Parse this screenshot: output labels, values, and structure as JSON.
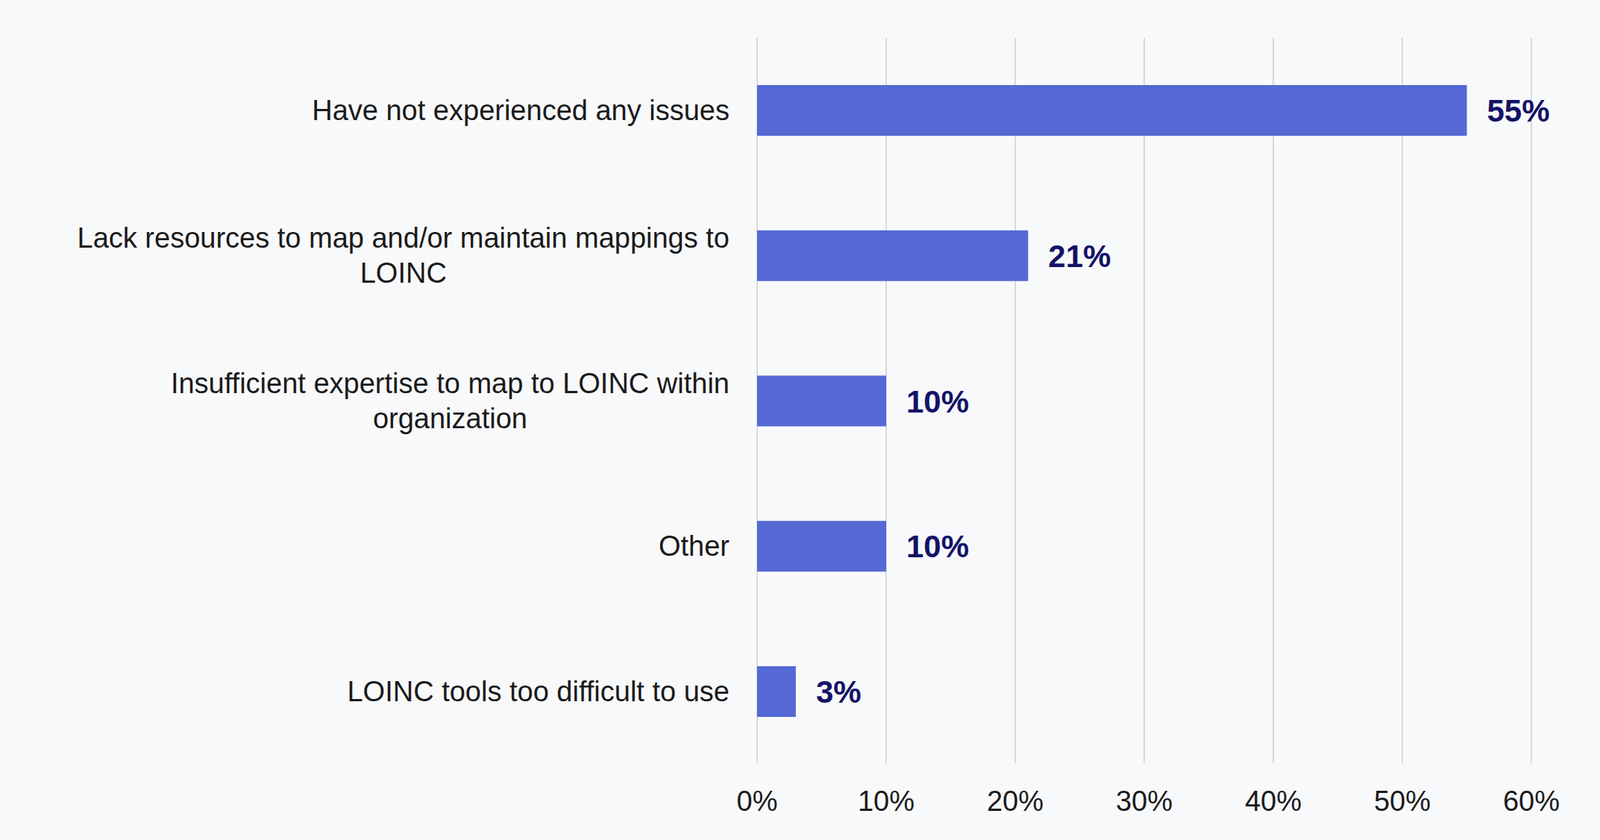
{
  "chart_data": {
    "type": "bar",
    "orientation": "horizontal",
    "categories": [
      "Have not experienced any issues",
      "Lack resources to map and/or maintain mappings to LOINC",
      "Insufficient expertise to map to LOINC within organization",
      "Other",
      "LOINC tools too difficult to use"
    ],
    "values": [
      55,
      21,
      10,
      10,
      3
    ],
    "value_labels": [
      "55%",
      "21%",
      "10%",
      "10%",
      "3%"
    ],
    "color": "#5469d4",
    "xlim": [
      0,
      60
    ],
    "xticks": [
      {
        "value": 0,
        "label": "0%"
      },
      {
        "value": 10,
        "label": "10%"
      },
      {
        "value": 20,
        "label": "20%"
      },
      {
        "value": 30,
        "label": "30%"
      },
      {
        "value": 40,
        "label": "40%"
      },
      {
        "value": 50,
        "label": "50%"
      },
      {
        "value": 60,
        "label": "60%"
      }
    ],
    "grid": true,
    "data_labels": true
  }
}
